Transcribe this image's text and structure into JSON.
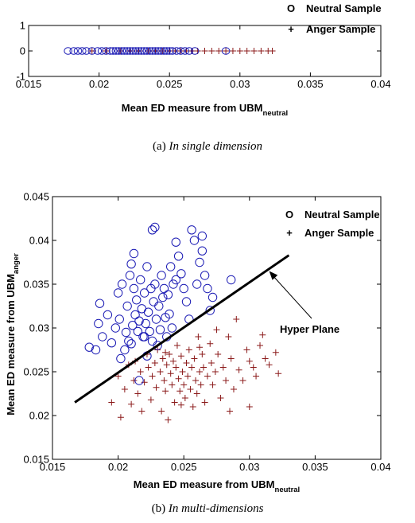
{
  "colors": {
    "neutral": "#1a1ab4",
    "anger": "#8b1a1a",
    "axis": "#000000",
    "hyperplane": "#000000"
  },
  "chart_data": [
    {
      "type": "scatter",
      "title": "",
      "xlabel": "Mean ED measure from UBM",
      "xlabel_sub": "neutral",
      "ylabel": "",
      "xlim": [
        0.015,
        0.04
      ],
      "ylim": [
        -1,
        1
      ],
      "xticks": [
        "0.015",
        "0.02",
        "0.025",
        "0.03",
        "0.035",
        "0.04"
      ],
      "yticks": [
        "-1",
        "0",
        "1"
      ],
      "legend": {
        "position": "top-right",
        "entries": [
          {
            "marker": "O",
            "label": "Neutral Sample"
          },
          {
            "marker": "+",
            "label": "Anger Sample"
          }
        ]
      },
      "series": [
        {
          "name": "Neutral Sample",
          "marker": "o",
          "x": [
            0.0178,
            0.0182,
            0.0185,
            0.0188,
            0.0191,
            0.0195,
            0.0199,
            0.0202,
            0.0205,
            0.0208,
            0.021,
            0.0212,
            0.0214,
            0.0216,
            0.0218,
            0.022,
            0.0222,
            0.0224,
            0.0226,
            0.0228,
            0.023,
            0.0232,
            0.0234,
            0.0236,
            0.0238,
            0.024,
            0.0242,
            0.0244,
            0.0246,
            0.0248,
            0.025,
            0.0252,
            0.0255,
            0.0258,
            0.0261,
            0.0264,
            0.0268,
            0.029
          ],
          "y": [
            0,
            0,
            0,
            0,
            0,
            0,
            0,
            0,
            0,
            0,
            0,
            0,
            0,
            0,
            0,
            0,
            0,
            0,
            0,
            0,
            0,
            0,
            0,
            0,
            0,
            0,
            0,
            0,
            0,
            0,
            0,
            0,
            0,
            0,
            0,
            0,
            0,
            0
          ]
        },
        {
          "name": "Anger Sample",
          "marker": "+",
          "x": [
            0.0195,
            0.0205,
            0.0215,
            0.0222,
            0.0228,
            0.0235,
            0.024,
            0.0245,
            0.025,
            0.0254,
            0.0258,
            0.0262,
            0.0266,
            0.027,
            0.0275,
            0.028,
            0.0285,
            0.029,
            0.0295,
            0.03,
            0.0305,
            0.031,
            0.0315,
            0.032,
            0.0323
          ],
          "y": [
            0,
            0,
            0,
            0,
            0,
            0,
            0,
            0,
            0,
            0,
            0,
            0,
            0,
            0,
            0,
            0,
            0,
            0,
            0,
            0,
            0,
            0,
            0,
            0,
            0
          ]
        }
      ],
      "caption_prefix": "(a)",
      "caption": "In single dimension"
    },
    {
      "type": "scatter",
      "title": "",
      "xlabel": "Mean ED measure from UBM",
      "xlabel_sub": "neutral",
      "ylabel": "Mean ED measure from UBM",
      "ylabel_sub": "anger",
      "xlim": [
        0.015,
        0.04
      ],
      "ylim": [
        0.015,
        0.045
      ],
      "xticks": [
        "0.015",
        "0.02",
        "0.025",
        "0.03",
        "0.035",
        "0.04"
      ],
      "yticks": [
        "0.015",
        "0.02",
        "0.025",
        "0.03",
        "0.035",
        "0.04",
        "0.045"
      ],
      "legend": {
        "position": "top-right",
        "entries": [
          {
            "marker": "O",
            "label": "Neutral Sample"
          },
          {
            "marker": "+",
            "label": "Anger Sample"
          }
        ]
      },
      "annotation": {
        "text": "Hyper Plane",
        "arrow_to": [
          0.0315,
          0.0365
        ]
      },
      "hyperplane": {
        "x": [
          0.0167,
          0.033
        ],
        "y": [
          0.0215,
          0.0383
        ]
      },
      "series": [
        {
          "name": "Neutral Sample",
          "marker": "o",
          "points": [
            [
              0.0178,
              0.0278
            ],
            [
              0.0183,
              0.0275
            ],
            [
              0.0185,
              0.0305
            ],
            [
              0.0186,
              0.0328
            ],
            [
              0.0188,
              0.029
            ],
            [
              0.0192,
              0.0315
            ],
            [
              0.0195,
              0.0283
            ],
            [
              0.0198,
              0.03
            ],
            [
              0.02,
              0.034
            ],
            [
              0.0201,
              0.031
            ],
            [
              0.0202,
              0.0265
            ],
            [
              0.0203,
              0.035
            ],
            [
              0.0205,
              0.0275
            ],
            [
              0.0206,
              0.0295
            ],
            [
              0.0207,
              0.0325
            ],
            [
              0.0208,
              0.0285
            ],
            [
              0.0209,
              0.036
            ],
            [
              0.021,
              0.0373
            ],
            [
              0.021,
              0.0282
            ],
            [
              0.0211,
              0.0303
            ],
            [
              0.0212,
              0.0345
            ],
            [
              0.0212,
              0.0385
            ],
            [
              0.0213,
              0.0315
            ],
            [
              0.0214,
              0.0332
            ],
            [
              0.0215,
              0.0296
            ],
            [
              0.0216,
              0.0308
            ],
            [
              0.0216,
              0.024
            ],
            [
              0.0217,
              0.0355
            ],
            [
              0.0218,
              0.0322
            ],
            [
              0.0219,
              0.029
            ],
            [
              0.022,
              0.034
            ],
            [
              0.0221,
              0.0305
            ],
            [
              0.0222,
              0.0268
            ],
            [
              0.0222,
              0.037
            ],
            [
              0.0223,
              0.0318
            ],
            [
              0.0224,
              0.0296
            ],
            [
              0.0225,
              0.0345
            ],
            [
              0.0226,
              0.0412
            ],
            [
              0.0226,
              0.0285
            ],
            [
              0.0227,
              0.033
            ],
            [
              0.0228,
              0.0415
            ],
            [
              0.0228,
              0.035
            ],
            [
              0.0229,
              0.031
            ],
            [
              0.023,
              0.028
            ],
            [
              0.0231,
              0.0325
            ],
            [
              0.0232,
              0.0298
            ],
            [
              0.0233,
              0.036
            ],
            [
              0.0234,
              0.0335
            ],
            [
              0.0235,
              0.0345
            ],
            [
              0.0236,
              0.0312
            ],
            [
              0.0237,
              0.029
            ],
            [
              0.0238,
              0.0338
            ],
            [
              0.0239,
              0.0316
            ],
            [
              0.024,
              0.037
            ],
            [
              0.0241,
              0.03
            ],
            [
              0.0242,
              0.035
            ],
            [
              0.0244,
              0.0398
            ],
            [
              0.0246,
              0.0382
            ],
            [
              0.0248,
              0.0362
            ],
            [
              0.025,
              0.0345
            ],
            [
              0.0252,
              0.033
            ],
            [
              0.0254,
              0.031
            ],
            [
              0.0256,
              0.0412
            ],
            [
              0.0258,
              0.04
            ],
            [
              0.026,
              0.035
            ],
            [
              0.0262,
              0.0375
            ],
            [
              0.0264,
              0.0388
            ],
            [
              0.0266,
              0.036
            ],
            [
              0.0268,
              0.0345
            ],
            [
              0.027,
              0.032
            ],
            [
              0.0272,
              0.0335
            ],
            [
              0.0286,
              0.0355
            ],
            [
              0.0264,
              0.0405
            ],
            [
              0.0244,
              0.0355
            ],
            [
              0.022,
              0.029
            ]
          ]
        },
        {
          "name": "Anger Sample",
          "marker": "+",
          "points": [
            [
              0.0195,
              0.0215
            ],
            [
              0.02,
              0.0245
            ],
            [
              0.0202,
              0.0198
            ],
            [
              0.0205,
              0.023
            ],
            [
              0.0208,
              0.0258
            ],
            [
              0.021,
              0.0213
            ],
            [
              0.0212,
              0.024
            ],
            [
              0.0213,
              0.0262
            ],
            [
              0.0215,
              0.0225
            ],
            [
              0.0217,
              0.025
            ],
            [
              0.0218,
              0.0205
            ],
            [
              0.022,
              0.0238
            ],
            [
              0.0222,
              0.027
            ],
            [
              0.0223,
              0.0255
            ],
            [
              0.0225,
              0.0218
            ],
            [
              0.0226,
              0.0245
            ],
            [
              0.0228,
              0.026
            ],
            [
              0.0229,
              0.0232
            ],
            [
              0.023,
              0.0275
            ],
            [
              0.0232,
              0.025
            ],
            [
              0.0233,
              0.0205
            ],
            [
              0.0234,
              0.0265
            ],
            [
              0.0235,
              0.024
            ],
            [
              0.0236,
              0.0228
            ],
            [
              0.0237,
              0.0258
            ],
            [
              0.0238,
              0.0195
            ],
            [
              0.0239,
              0.027
            ],
            [
              0.024,
              0.0248
            ],
            [
              0.0241,
              0.0235
            ],
            [
              0.0242,
              0.0262
            ],
            [
              0.0243,
              0.0215
            ],
            [
              0.0244,
              0.0255
            ],
            [
              0.0245,
              0.028
            ],
            [
              0.0246,
              0.0242
            ],
            [
              0.0247,
              0.0228
            ],
            [
              0.0248,
              0.0268
            ],
            [
              0.0249,
              0.025
            ],
            [
              0.025,
              0.0235
            ],
            [
              0.0251,
              0.022
            ],
            [
              0.0252,
              0.026
            ],
            [
              0.0253,
              0.0245
            ],
            [
              0.0254,
              0.0275
            ],
            [
              0.0255,
              0.023
            ],
            [
              0.0256,
              0.0255
            ],
            [
              0.0257,
              0.021
            ],
            [
              0.0258,
              0.0265
            ],
            [
              0.0259,
              0.024
            ],
            [
              0.026,
              0.0225
            ],
            [
              0.0261,
              0.029
            ],
            [
              0.0262,
              0.025
            ],
            [
              0.0263,
              0.0235
            ],
            [
              0.0264,
              0.027
            ],
            [
              0.0265,
              0.0255
            ],
            [
              0.0266,
              0.0215
            ],
            [
              0.0268,
              0.0245
            ],
            [
              0.027,
              0.0282
            ],
            [
              0.0271,
              0.026
            ],
            [
              0.0272,
              0.0235
            ],
            [
              0.0274,
              0.025
            ],
            [
              0.0275,
              0.0298
            ],
            [
              0.0276,
              0.027
            ],
            [
              0.0278,
              0.022
            ],
            [
              0.028,
              0.0255
            ],
            [
              0.0282,
              0.024
            ],
            [
              0.0284,
              0.029
            ],
            [
              0.0286,
              0.0265
            ],
            [
              0.0288,
              0.023
            ],
            [
              0.029,
              0.031
            ],
            [
              0.0292,
              0.0252
            ],
            [
              0.0295,
              0.024
            ],
            [
              0.0298,
              0.0275
            ],
            [
              0.03,
              0.0262
            ],
            [
              0.0303,
              0.0255
            ],
            [
              0.0305,
              0.0245
            ],
            [
              0.0308,
              0.028
            ],
            [
              0.031,
              0.0292
            ],
            [
              0.0312,
              0.0265
            ],
            [
              0.0315,
              0.0258
            ],
            [
              0.032,
              0.0272
            ],
            [
              0.0322,
              0.0248
            ],
            [
              0.03,
              0.021
            ],
            [
              0.0285,
              0.0205
            ],
            [
              0.0262,
              0.0278
            ],
            [
              0.0248,
              0.0212
            ],
            [
              0.0236,
              0.0272
            ]
          ]
        }
      ],
      "caption_prefix": "(b)",
      "caption": "In multi-dimensions"
    }
  ]
}
